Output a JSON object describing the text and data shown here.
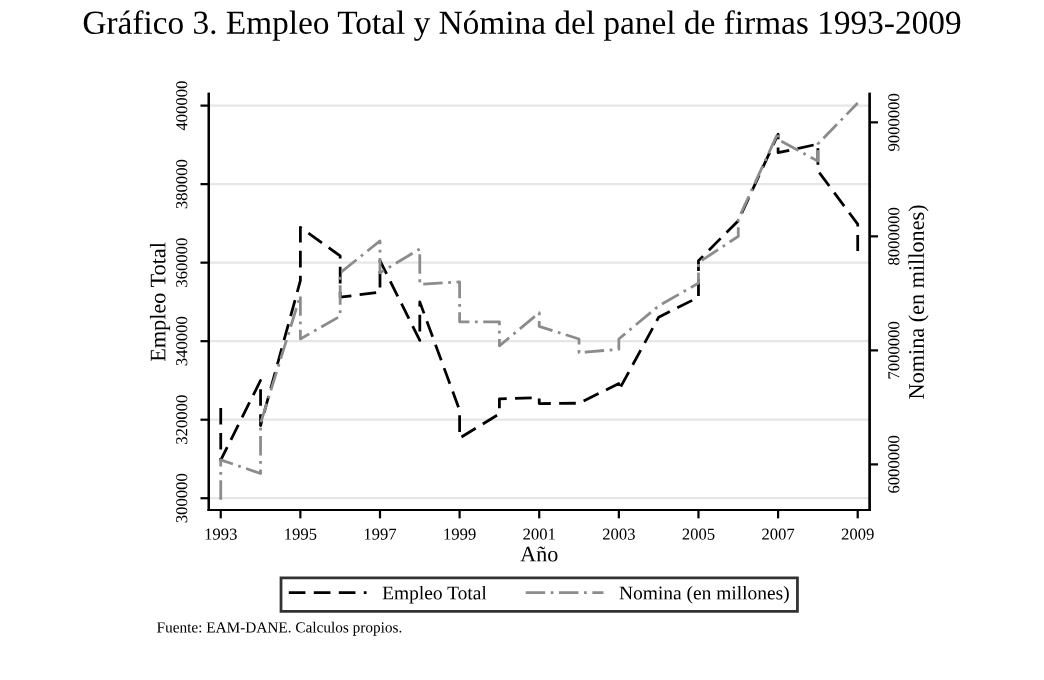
{
  "chart_data": {
    "type": "line",
    "title": "Gráfico 3. Empleo Total y Nómina del panel de firmas 1993-2009",
    "xlabel": "Año",
    "ylabel": "Empleo Total",
    "y2label": "Nomina (en millones)",
    "series": [
      {
        "name": "Empleo Total",
        "color": "#000000",
        "line_style": "dashed",
        "x": [
          1993,
          1993,
          1994,
          1994,
          1995,
          1995,
          1996,
          1996,
          1997,
          1997,
          1998,
          1998,
          1999,
          1999,
          2000,
          2000,
          2001,
          2001,
          2002,
          2003,
          2003,
          2004,
          2005,
          2005,
          2006,
          2007,
          2007,
          2008,
          2008,
          2009,
          2009
        ],
        "values": [
          323000,
          309700,
          330000,
          318500,
          355400,
          369000,
          361700,
          351200,
          352500,
          360500,
          340200,
          350000,
          322400,
          315300,
          321500,
          325300,
          325600,
          324100,
          324200,
          329200,
          327500,
          346100,
          351200,
          360500,
          370700,
          392700,
          388000,
          390200,
          383400,
          369800,
          363000
        ]
      },
      {
        "name": "Nomina (en millones)",
        "color": "#8c8c8c",
        "line_style": "dashdot",
        "axis": "y2",
        "x": [
          1993,
          1993,
          1994,
          1994,
          1995,
          1995,
          1996,
          1996,
          1997,
          1997,
          1998,
          1998,
          1999,
          1999,
          2000,
          2000,
          2001,
          2001,
          2002,
          2002,
          2003,
          2003,
          2004,
          2005,
          2005,
          2006,
          2006,
          2007,
          2007,
          2008,
          2008,
          2009
        ],
        "values": [
          5690000,
          6040000,
          5920000,
          6360000,
          7480000,
          7100000,
          7300000,
          7680000,
          7960000,
          7680000,
          7890000,
          7580000,
          7600000,
          7250000,
          7250000,
          7040000,
          7330000,
          7210000,
          7100000,
          6980000,
          7010000,
          7100000,
          7390000,
          7590000,
          7770000,
          8000000,
          8150000,
          8910000,
          8850000,
          8660000,
          8810000,
          9170000
        ]
      }
    ],
    "xlim": [
      1992.7,
      2009.3
    ],
    "xticks": [
      1993,
      1995,
      1997,
      1999,
      2001,
      2003,
      2005,
      2007,
      2009
    ],
    "ylim": [
      297000,
      403000
    ],
    "yticks": [
      300000,
      320000,
      340000,
      360000,
      380000,
      400000
    ],
    "y2lim": [
      5600000,
      9250000
    ],
    "y2ticks": [
      6000000,
      7000000,
      8000000,
      9000000
    ],
    "grid": "y",
    "legend": "bottom",
    "annotations": [
      "Fuente: EAM-DANE. Calculos propios."
    ]
  }
}
